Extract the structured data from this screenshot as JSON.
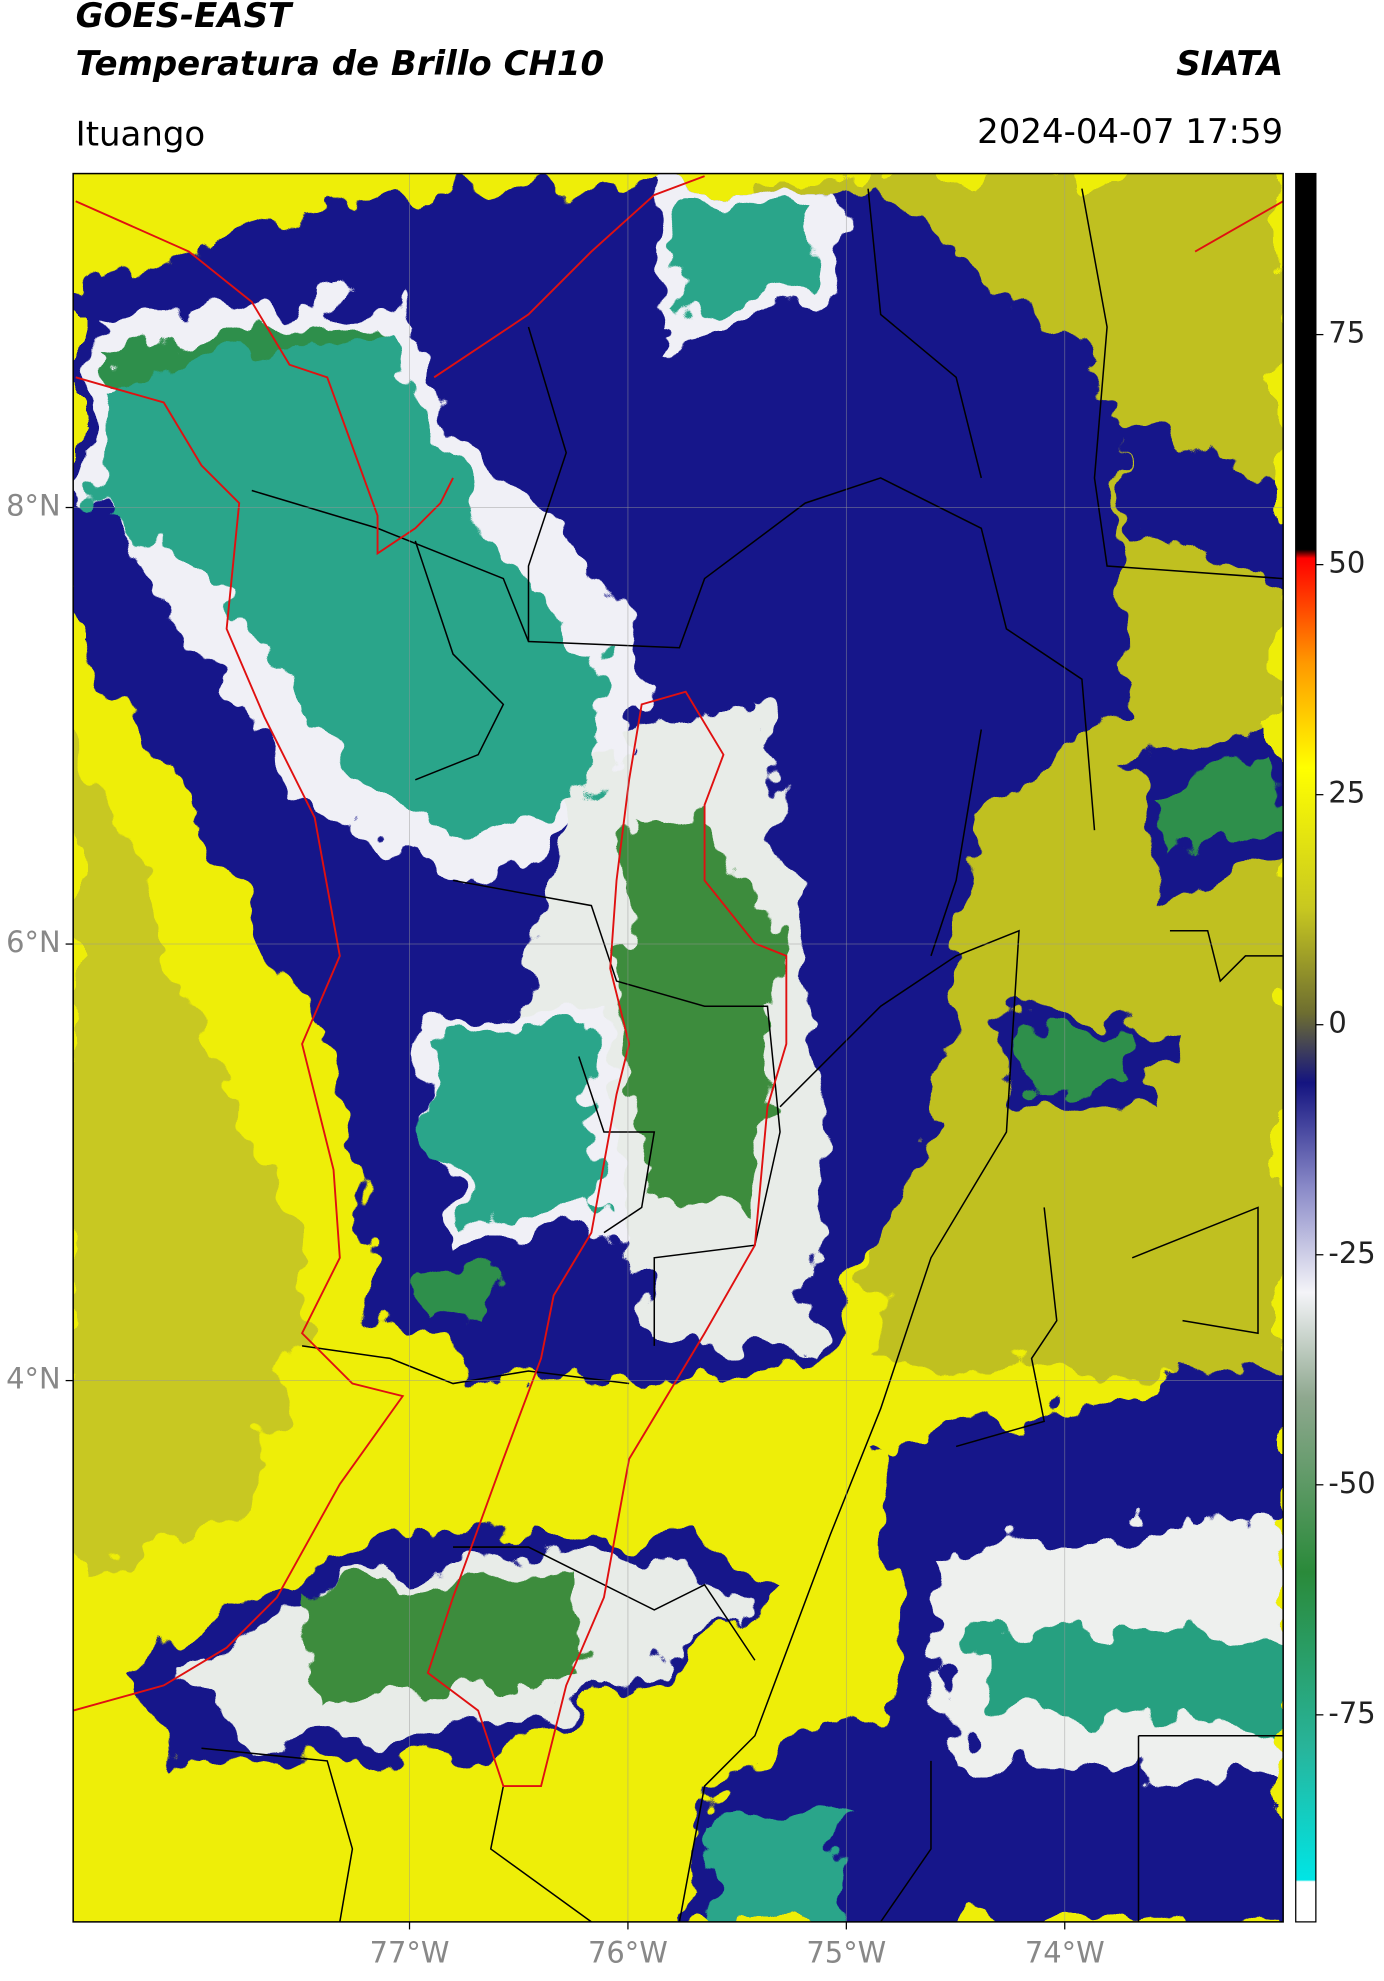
{
  "header": {
    "title": "GOES-EAST",
    "subtitle": "Temperatura de Brillo CH10",
    "source": "SIATA",
    "region": "Ituango",
    "timestamp": "2024-04-07 17:59"
  },
  "map": {
    "xlim": [
      -78.54,
      -73.0
    ],
    "ylim": [
      1.52,
      9.53
    ],
    "xticks": [
      {
        "value": -77,
        "label": "77°W"
      },
      {
        "value": -76,
        "label": "76°W"
      },
      {
        "value": -75,
        "label": "75°W"
      },
      {
        "value": -74,
        "label": "74°W"
      }
    ],
    "yticks": [
      {
        "value": 8,
        "label": "8°N"
      },
      {
        "value": 6,
        "label": "6°N"
      },
      {
        "value": 4,
        "label": "4°N"
      }
    ],
    "grid": true
  },
  "colorbar": {
    "lim": [
      -97.5,
      92.5
    ],
    "ticks": [
      75,
      50,
      25,
      0,
      -25,
      -50,
      -75
    ]
  }
}
